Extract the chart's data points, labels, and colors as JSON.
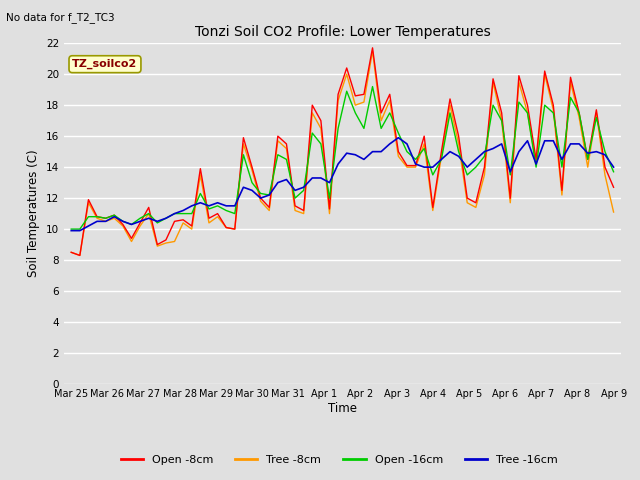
{
  "title": "Tonzi Soil CO2 Profile: Lower Temperatures",
  "no_data_text": "No data for f_T2_TC3",
  "ylabel": "Soil Temperatures (C)",
  "xlabel": "Time",
  "ylim": [
    0,
    22
  ],
  "yticks": [
    0,
    2,
    4,
    6,
    8,
    10,
    12,
    14,
    16,
    18,
    20,
    22
  ],
  "bg_color": "#e0e0e0",
  "plot_bg_color": "#e0e0e0",
  "grid_color": "#ffffff",
  "legend_label": "TZ_soilco2",
  "legend_box_color": "#ffffcc",
  "legend_box_edge": "#999900",
  "series": {
    "open_8cm": {
      "label": "Open -8cm",
      "color": "#ff0000"
    },
    "tree_8cm": {
      "label": "Tree -8cm",
      "color": "#ff9900"
    },
    "open_16cm": {
      "label": "Open -16cm",
      "color": "#00cc00"
    },
    "tree_16cm": {
      "label": "Tree -16cm",
      "color": "#0000cc"
    }
  },
  "xtick_labels": [
    "Mar 25",
    "Mar 26",
    "Mar 27",
    "Mar 28",
    "Mar 29",
    "Mar 30",
    "Mar 31",
    "Apr 1",
    "Apr 2",
    "Apr 3",
    "Apr 4",
    "Apr 5",
    "Apr 6",
    "Apr 7",
    "Apr 8",
    "Apr 9"
  ],
  "open_8cm": [
    8.5,
    8.3,
    11.9,
    10.8,
    10.7,
    10.9,
    10.3,
    9.4,
    10.4,
    11.4,
    9.0,
    9.3,
    10.5,
    10.6,
    10.2,
    13.9,
    10.7,
    11.0,
    10.1,
    10.0,
    15.9,
    14.0,
    12.0,
    11.4,
    16.0,
    15.5,
    11.5,
    11.2,
    18.0,
    17.0,
    11.3,
    18.7,
    20.4,
    18.6,
    18.7,
    21.7,
    17.5,
    18.7,
    15.0,
    14.1,
    14.1,
    16.0,
    11.4,
    15.0,
    18.4,
    16.0,
    12.0,
    11.7,
    14.0,
    19.7,
    17.5,
    12.0,
    19.9,
    18.0,
    14.5,
    20.2,
    18.0,
    12.5,
    19.8,
    17.5,
    14.5,
    17.7,
    14.0,
    12.7
  ],
  "tree_8cm": [
    8.5,
    8.3,
    11.7,
    10.7,
    10.5,
    10.7,
    10.2,
    9.2,
    10.2,
    11.0,
    8.9,
    9.1,
    9.2,
    10.4,
    10.0,
    13.5,
    10.4,
    10.8,
    10.1,
    10.0,
    15.5,
    13.8,
    11.8,
    11.2,
    15.7,
    15.2,
    11.2,
    11.0,
    17.5,
    16.5,
    11.0,
    18.3,
    20.0,
    18.0,
    18.2,
    21.5,
    17.0,
    18.3,
    14.7,
    14.0,
    14.0,
    15.5,
    11.2,
    14.7,
    18.0,
    15.5,
    11.7,
    11.4,
    13.5,
    19.5,
    17.0,
    11.7,
    19.5,
    17.5,
    14.2,
    20.0,
    17.7,
    12.2,
    19.5,
    17.2,
    14.0,
    17.5,
    13.5,
    11.1
  ],
  "open_16cm": [
    10.0,
    10.0,
    10.8,
    10.8,
    10.7,
    10.9,
    10.5,
    10.3,
    10.7,
    11.0,
    10.4,
    10.7,
    11.0,
    11.0,
    11.0,
    12.3,
    11.3,
    11.5,
    11.2,
    11.0,
    14.8,
    13.0,
    12.3,
    12.2,
    14.8,
    14.5,
    12.0,
    12.5,
    16.2,
    15.5,
    12.0,
    16.5,
    18.9,
    17.5,
    16.5,
    19.2,
    16.5,
    17.5,
    16.2,
    15.0,
    14.5,
    15.2,
    13.5,
    14.5,
    17.5,
    15.0,
    13.5,
    14.0,
    14.7,
    18.0,
    17.0,
    13.5,
    18.2,
    17.5,
    14.0,
    18.0,
    17.5,
    14.0,
    18.5,
    17.5,
    14.5,
    17.2,
    15.0,
    13.7
  ],
  "tree_16cm": [
    9.9,
    9.9,
    10.2,
    10.5,
    10.5,
    10.8,
    10.5,
    10.3,
    10.5,
    10.7,
    10.5,
    10.7,
    11.0,
    11.2,
    11.5,
    11.7,
    11.5,
    11.7,
    11.5,
    11.5,
    12.7,
    12.5,
    12.0,
    12.2,
    13.0,
    13.2,
    12.5,
    12.7,
    13.3,
    13.3,
    13.0,
    14.2,
    14.9,
    14.8,
    14.5,
    15.0,
    15.0,
    15.5,
    15.9,
    15.5,
    14.2,
    14.0,
    14.0,
    14.5,
    15.0,
    14.7,
    14.0,
    14.5,
    15.0,
    15.2,
    15.5,
    13.7,
    15.0,
    15.7,
    14.2,
    15.7,
    15.7,
    14.5,
    15.5,
    15.5,
    14.9,
    15.0,
    14.8,
    14.0
  ]
}
